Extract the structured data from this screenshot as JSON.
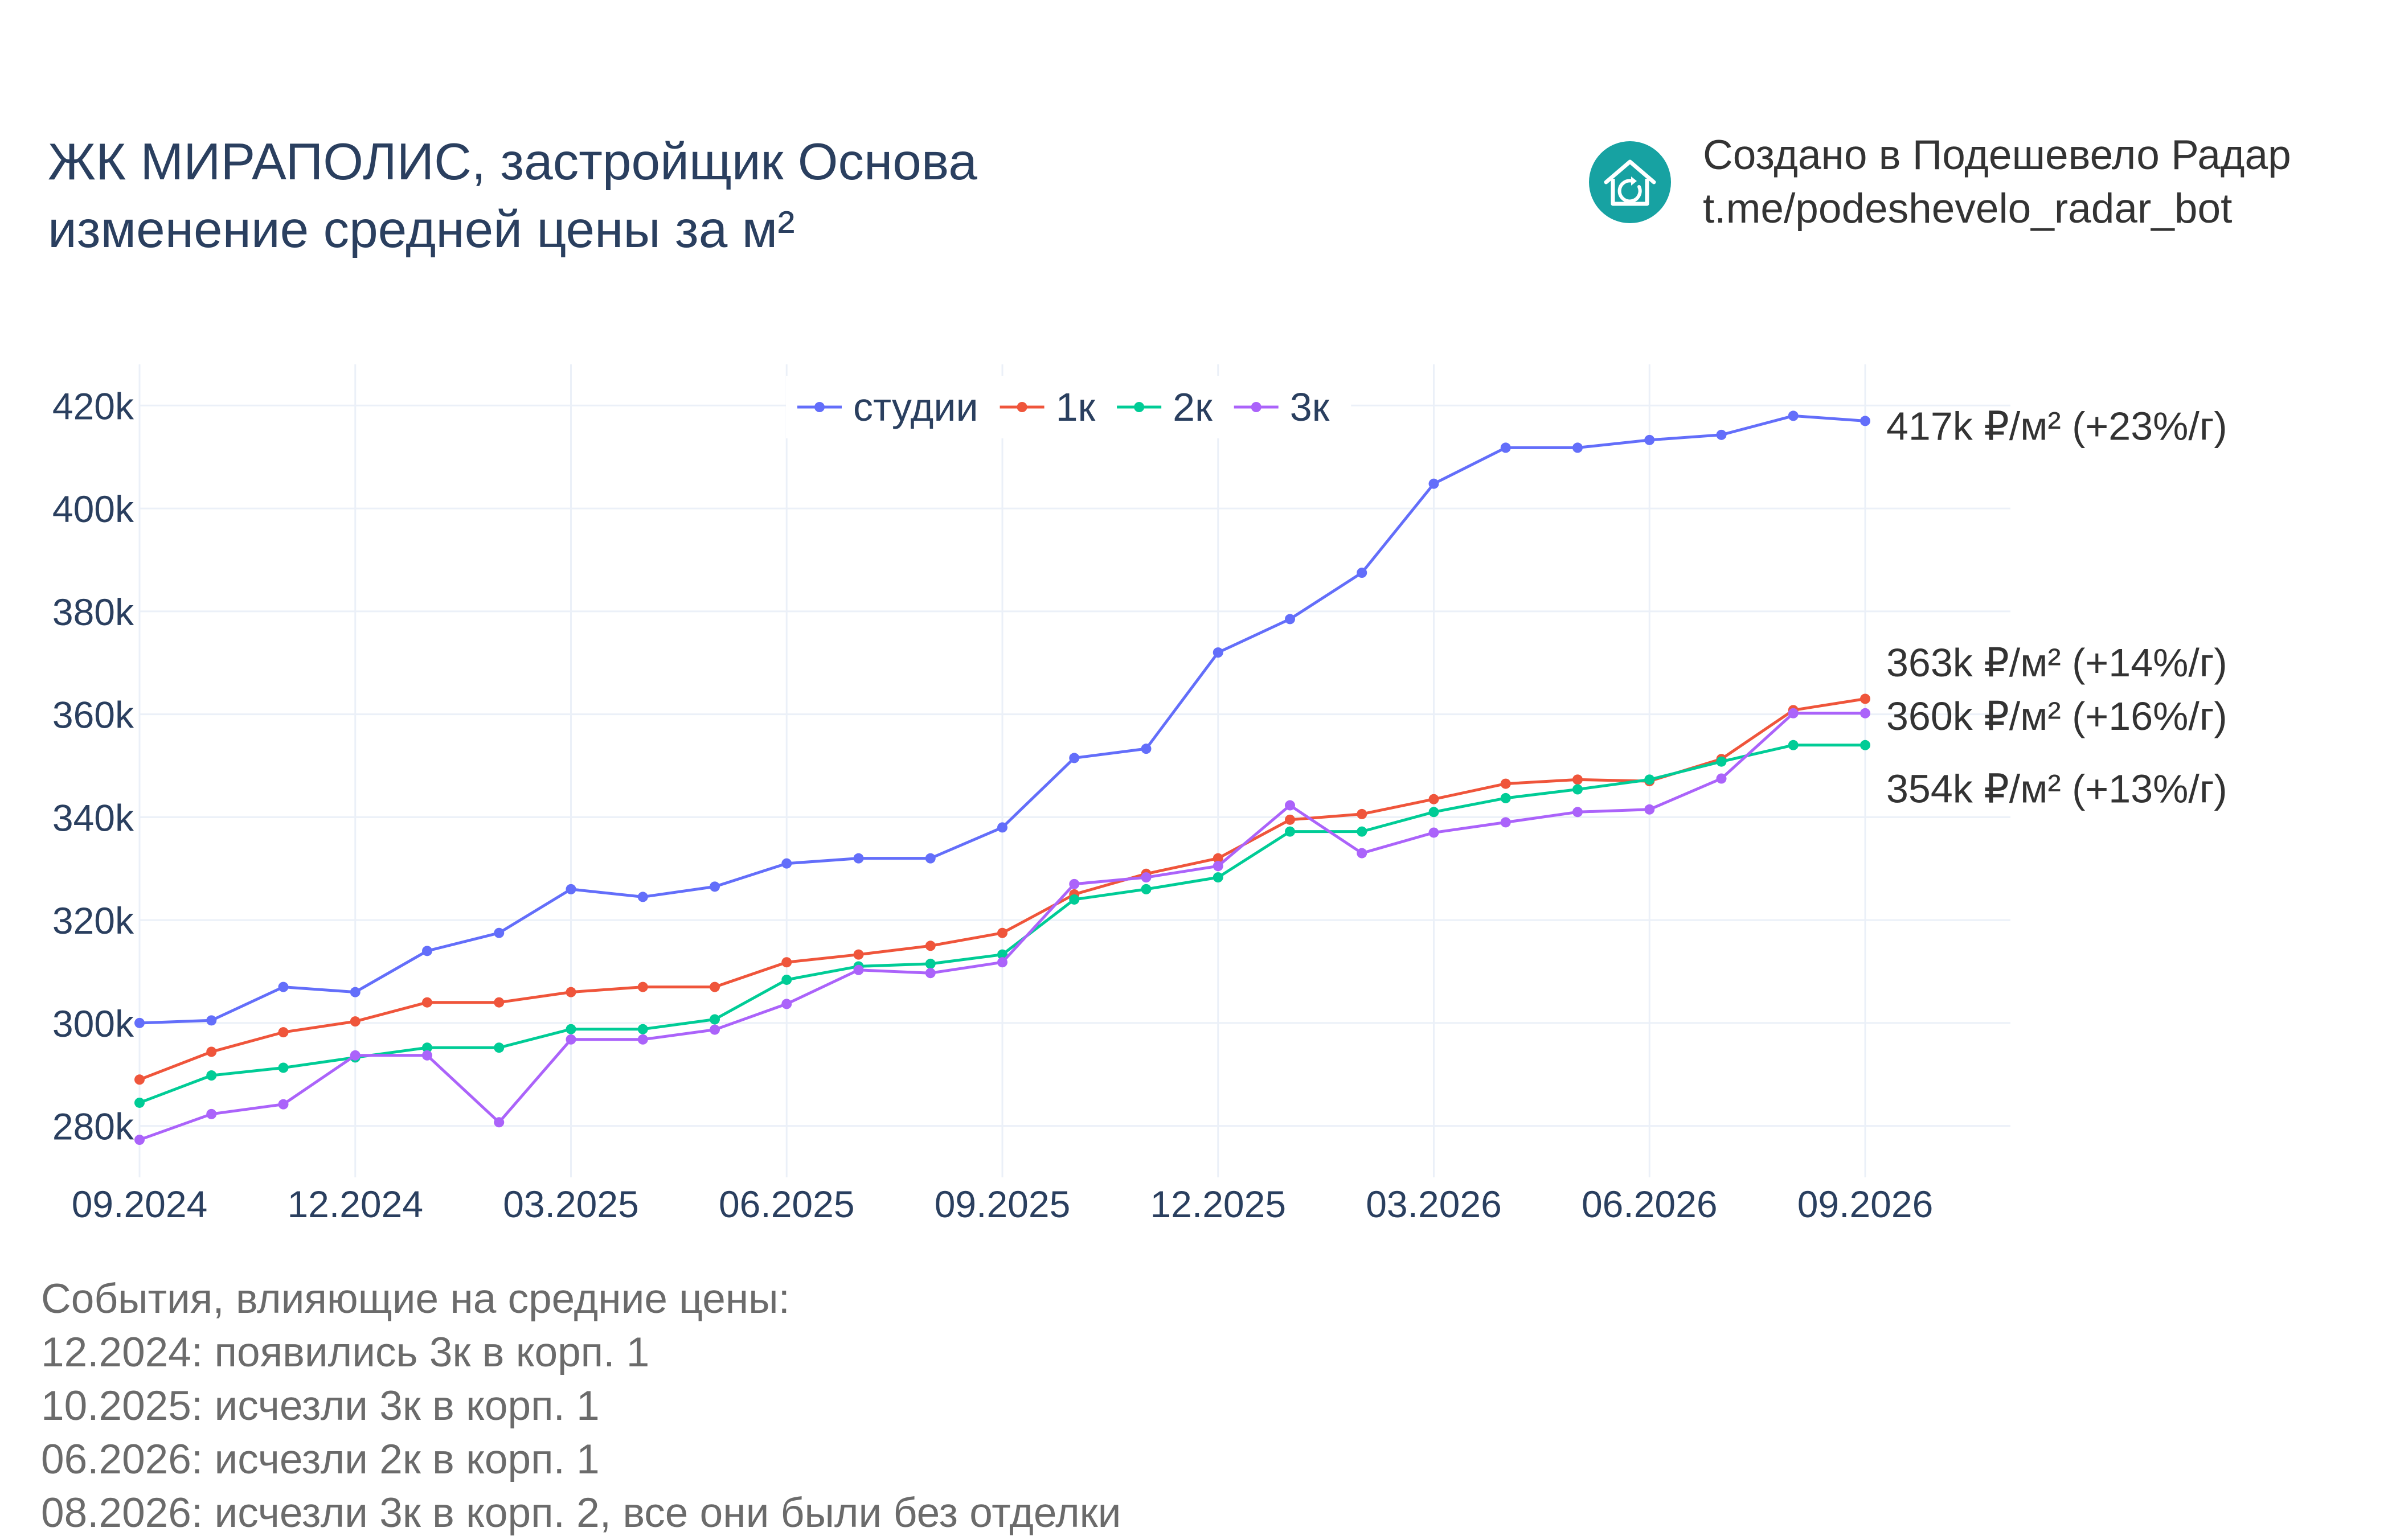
{
  "title": {
    "line1": "ЖК МИРАПОЛИС, застройщик Основа",
    "line2": "изменение средней цены за м²"
  },
  "brand": {
    "icon": "house-refresh-icon",
    "line1": "Создано в Подешевело Радар",
    "line2": "t.me/podeshevelo_radar_bot",
    "color": "#17a2a2"
  },
  "events": {
    "heading": "События, влияющие на средние цены:",
    "items": [
      "12.2024: появились 3к в корп. 1",
      "10.2025: исчезли 3к в корп. 1",
      "06.2026: исчезли 2к в корп. 1",
      "08.2026: исчезли 3к в корп. 2, все они были без отделки"
    ]
  },
  "chart_data": {
    "type": "line",
    "x": [
      "09.2024",
      "10.2024",
      "11.2024",
      "12.2024",
      "01.2025",
      "02.2025",
      "03.2025",
      "04.2025",
      "05.2025",
      "06.2025",
      "07.2025",
      "08.2025",
      "09.2025",
      "10.2025",
      "11.2025",
      "12.2025",
      "01.2026",
      "02.2026",
      "03.2026",
      "04.2026",
      "05.2026",
      "06.2026",
      "07.2026",
      "08.2026",
      "09.2026"
    ],
    "x_ticks": [
      "09.2024",
      "12.2024",
      "03.2025",
      "06.2025",
      "09.2025",
      "12.2025",
      "03.2026",
      "06.2026",
      "09.2026"
    ],
    "y_ticks": [
      "280k",
      "300k",
      "320k",
      "340k",
      "360k",
      "380k",
      "400k",
      "420k"
    ],
    "ylim": [
      270000,
      428000
    ],
    "grid": true,
    "legend_position": "top",
    "series": [
      {
        "name": "студии",
        "color": "#636efa",
        "values": [
          300000,
          300500,
          307000,
          306000,
          314000,
          317500,
          326000,
          324500,
          326500,
          331000,
          332000,
          332000,
          338000,
          351500,
          353300,
          372000,
          378500,
          387500,
          404800,
          411800,
          411800,
          413300,
          414300,
          418000,
          417000
        ],
        "end_label": "417k ₽/м² (+23%/г)",
        "end_label_value": 416000
      },
      {
        "name": "1к",
        "color": "#ef553b",
        "values": [
          289000,
          294400,
          298200,
          300300,
          304000,
          304000,
          306000,
          307000,
          307000,
          311800,
          313300,
          315000,
          317500,
          325000,
          329000,
          332000,
          339500,
          340600,
          343500,
          346500,
          347300,
          347000,
          351300,
          360800,
          363000
        ],
        "end_label": "363k ₽/м² (+14%/г)",
        "end_label_value": 370000
      },
      {
        "name": "2к",
        "color": "#00cc96",
        "values": [
          284500,
          289800,
          291300,
          293300,
          295200,
          295200,
          298800,
          298800,
          300700,
          308400,
          311000,
          311500,
          313300,
          324000,
          326000,
          328300,
          337200,
          337200,
          341000,
          343700,
          345400,
          347300,
          350800,
          354000,
          354000
        ],
        "end_label": "354k ₽/м² (+13%/г)",
        "end_label_value": 345500
      },
      {
        "name": "3к",
        "color": "#ab63fa",
        "values": [
          277300,
          282300,
          284200,
          293700,
          293700,
          280700,
          296800,
          296800,
          298700,
          303700,
          310300,
          309700,
          311800,
          327000,
          328300,
          330500,
          342300,
          333000,
          337000,
          339000,
          341000,
          341500,
          347500,
          360200,
          360200
        ],
        "end_label": "360k ₽/м² (+16%/г)",
        "end_label_value": 359600
      }
    ]
  }
}
